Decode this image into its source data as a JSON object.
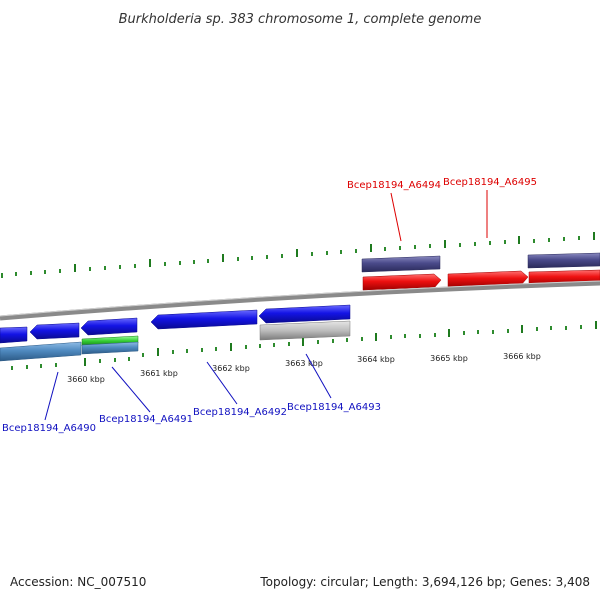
{
  "title": "Burkholderia sp. 383 chromosome 1, complete genome",
  "footer": {
    "accession": "Accession: NC_007510",
    "topology": "Topology: circular; Length: 3,694,126 bp; Genes: 3,408"
  },
  "colors": {
    "backbone": "#8a8a8a",
    "minor_tick": "#2e8b2e",
    "major_tick": "#1f7a1f",
    "gene_blue": "#1414e6",
    "gene_red": "#ee1111",
    "gene_purple": "#4a4a8a",
    "gene_steel": "#4f8ac0",
    "gene_green": "#33cc33",
    "gene_grey": "#bdbdbd",
    "label_blue": "#1010c0",
    "label_red": "#dd0000"
  },
  "scale": {
    "unit_labels": [
      "3660 kbp",
      "3661 kbp",
      "3662 kbp",
      "3663 kbp",
      "3664 kbp",
      "3665 kbp",
      "3666 kbp"
    ]
  },
  "gene_labels_top": [
    {
      "name": "Bcep18194_A6494"
    },
    {
      "name": "Bcep18194_A6495"
    }
  ],
  "gene_labels_bottom": [
    {
      "name": "Bcep18194_A6490"
    },
    {
      "name": "Bcep18194_A6491"
    },
    {
      "name": "Bcep18194_A6492"
    },
    {
      "name": "Bcep18194_A6493"
    }
  ]
}
